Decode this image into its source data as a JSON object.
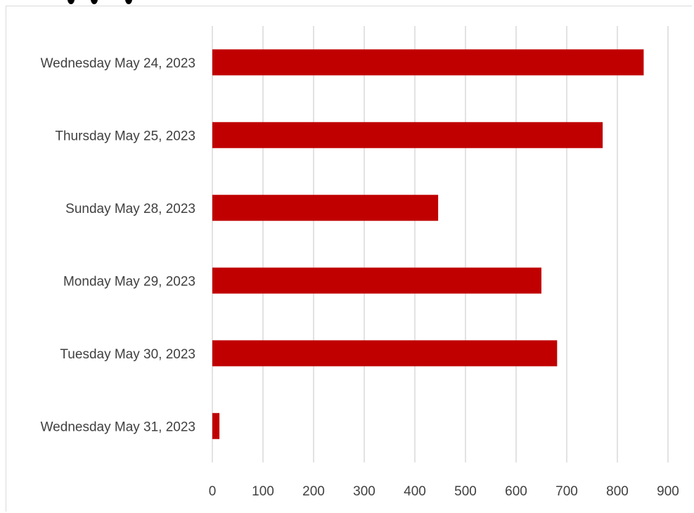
{
  "chart_data": {
    "type": "bar",
    "orientation": "horizontal",
    "title": "",
    "xlabel": "",
    "ylabel": "",
    "categories": [
      "Wednesday May 24, 2023",
      "Thursday May 25, 2023",
      "Sunday May 28, 2023",
      "Monday May 29, 2023",
      "Tuesday May 30, 2023",
      "Wednesday May 31, 2023"
    ],
    "values": [
      852,
      771,
      446,
      650,
      681,
      14
    ],
    "xlim": [
      0,
      900
    ],
    "xticks": [
      "0",
      "100",
      "200",
      "300",
      "400",
      "500",
      "600",
      "700",
      "800",
      "900"
    ],
    "grid": "vertical",
    "legend": "none",
    "bar_color": "#c00000",
    "grid_color": "#d9d9d9",
    "label_color": "#404040"
  }
}
